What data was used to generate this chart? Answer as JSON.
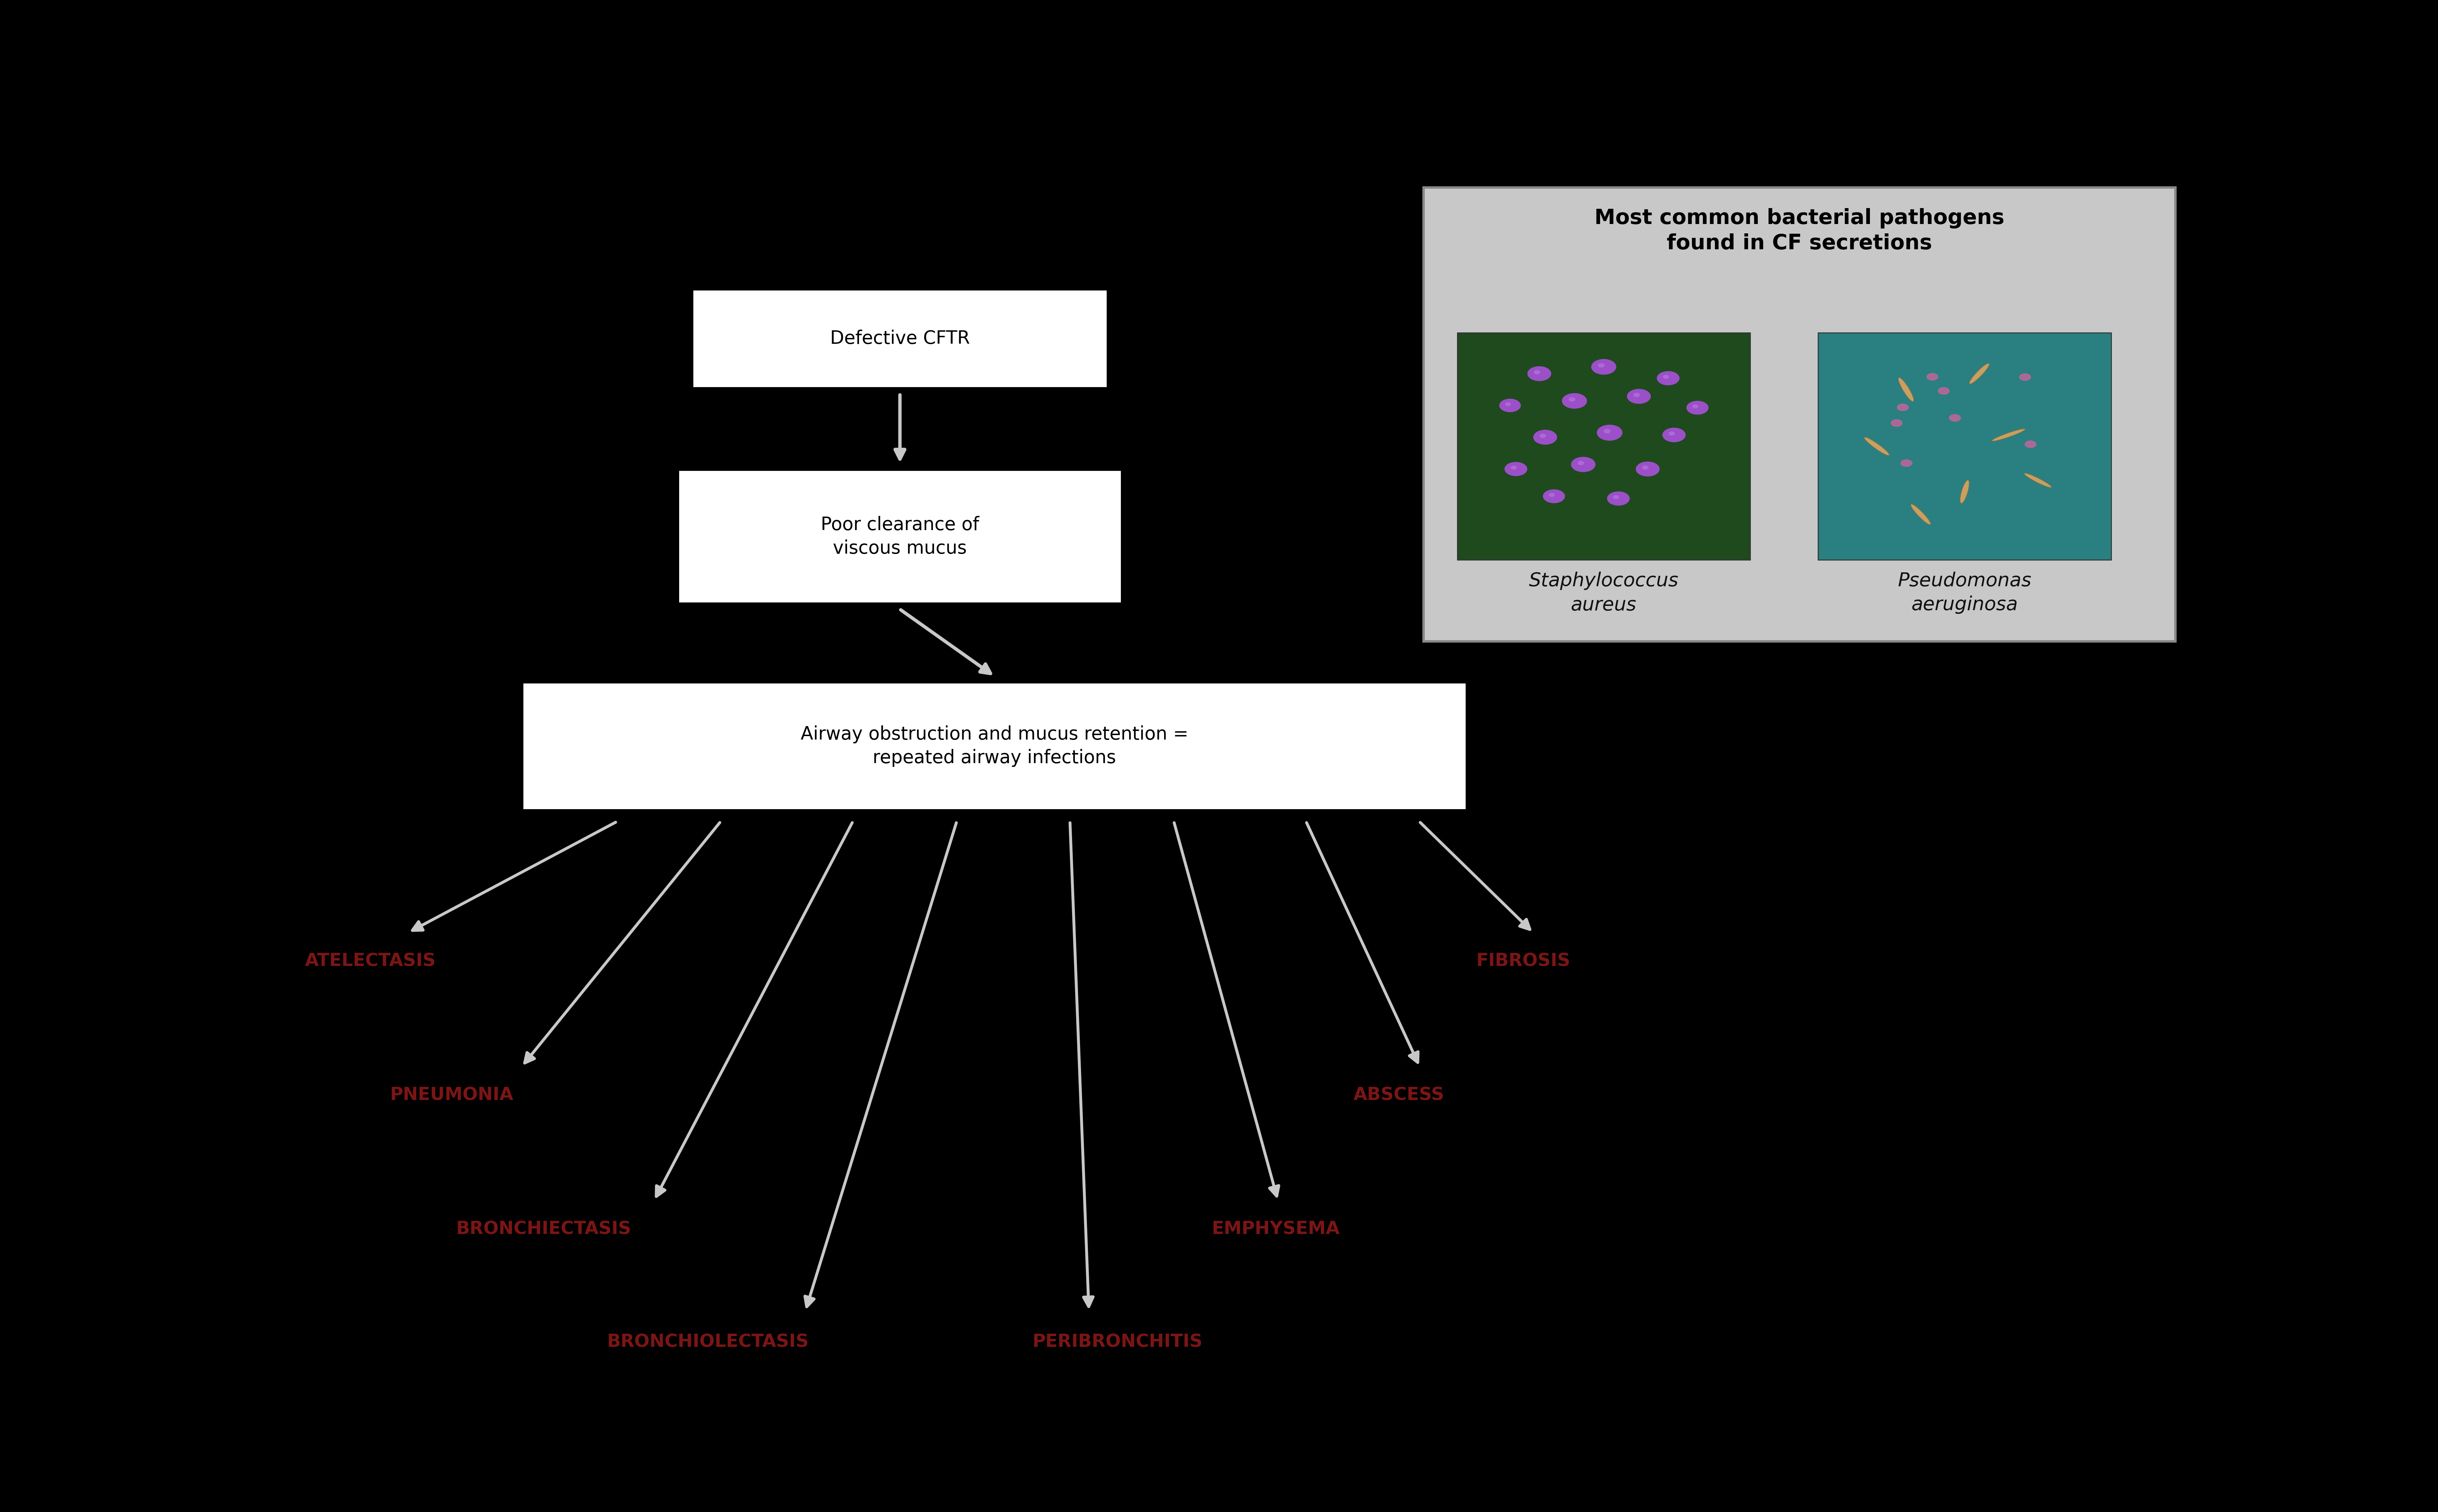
{
  "bg_color": "#000000",
  "box_bg": "#ffffff",
  "box_edge": "#000000",
  "box_text_color": "#000000",
  "panel_bg": "#c8c8c8",
  "panel_edge": "#888888",
  "arrow_color": "#c8c8c8",
  "label_color": "#7b1515",
  "title_color": "#000000",
  "italic_color": "#111111",
  "box1_text": "Defective CFTR",
  "box2_text": "Poor clearance of\nviscous mucus",
  "box3_text": "Airway obstruction and mucus retention =\nrepeated airway infections",
  "panel_title": "Most common bacterial pathogens\nfound in CF secretions",
  "staph_label": "Staphylococcus\naureus",
  "pseudo_label": "Pseudomonas\naeruginosa",
  "figsize": [
    70.43,
    43.67
  ],
  "dpi": 100
}
